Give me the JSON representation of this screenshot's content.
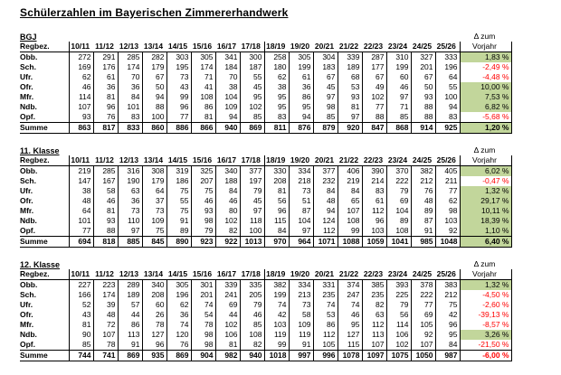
{
  "title": "Schülerzahlen im Bayerischen Zimmererhandwerk",
  "row_header": "Regbez.",
  "delta_header": {
    "line1": "Δ zum",
    "line2": "Vorjahr"
  },
  "years": [
    "10/11",
    "11/12",
    "12/13",
    "13/14",
    "14/15",
    "15/16",
    "16/17",
    "17/18",
    "18/19",
    "19/20",
    "20/21",
    "21/22",
    "22/23",
    "23/24",
    "24/25",
    "25/26"
  ],
  "colors": {
    "positive_bg": "#c2d69b",
    "negative_text": "#ff0000"
  },
  "sections": [
    {
      "id": "bgj",
      "label": "BGJ",
      "rows": [
        {
          "region": "Obb.",
          "values": [
            272,
            291,
            285,
            282,
            303,
            305,
            341,
            300,
            258,
            305,
            304,
            339,
            287,
            310,
            327,
            333
          ],
          "delta": "1,83 %",
          "trend": "pos"
        },
        {
          "region": "Sch.",
          "values": [
            169,
            176,
            174,
            179,
            195,
            174,
            184,
            187,
            180,
            199,
            183,
            189,
            177,
            199,
            201,
            196
          ],
          "delta": "-2,49 %",
          "trend": "neg"
        },
        {
          "region": "Ufr.",
          "values": [
            62,
            61,
            70,
            67,
            73,
            71,
            70,
            55,
            62,
            61,
            67,
            68,
            67,
            60,
            67,
            64
          ],
          "delta": "-4,48 %",
          "trend": "neg"
        },
        {
          "region": "Ofr.",
          "values": [
            46,
            36,
            36,
            50,
            43,
            41,
            38,
            45,
            38,
            36,
            45,
            53,
            49,
            46,
            50,
            55
          ],
          "delta": "10,00 %",
          "trend": "pos"
        },
        {
          "region": "Mfr.",
          "values": [
            114,
            81,
            84,
            94,
            99,
            108,
            104,
            95,
            95,
            86,
            97,
            93,
            102,
            97,
            93,
            100
          ],
          "delta": "7,53 %",
          "trend": "pos"
        },
        {
          "region": "Ndb.",
          "values": [
            107,
            96,
            101,
            88,
            96,
            86,
            109,
            102,
            95,
            95,
            98,
            81,
            77,
            71,
            88,
            94
          ],
          "delta": "6,82 %",
          "trend": "pos"
        },
        {
          "region": "Opf.",
          "values": [
            93,
            76,
            83,
            100,
            77,
            81,
            94,
            85,
            83,
            94,
            85,
            97,
            88,
            85,
            88,
            83
          ],
          "delta": "-5,68 %",
          "trend": "neg"
        }
      ],
      "summe": {
        "region": "Summe",
        "values": [
          863,
          817,
          833,
          860,
          886,
          866,
          940,
          869,
          811,
          876,
          879,
          920,
          847,
          868,
          914,
          925
        ],
        "delta": "1,20 %",
        "trend": "pos"
      }
    },
    {
      "id": "klasse-11",
      "label": "11. Klasse",
      "rows": [
        {
          "region": "Obb.",
          "values": [
            219,
            285,
            316,
            308,
            319,
            325,
            340,
            377,
            330,
            334,
            377,
            406,
            390,
            370,
            382,
            405
          ],
          "delta": "6,02 %",
          "trend": "pos"
        },
        {
          "region": "Sch.",
          "values": [
            147,
            167,
            190,
            179,
            186,
            207,
            188,
            197,
            208,
            218,
            232,
            219,
            214,
            222,
            212,
            211
          ],
          "delta": "-0,47 %",
          "trend": "neg"
        },
        {
          "region": "Ufr.",
          "values": [
            38,
            58,
            63,
            64,
            75,
            75,
            84,
            79,
            81,
            73,
            84,
            84,
            83,
            79,
            76,
            77
          ],
          "delta": "1,32 %",
          "trend": "pos"
        },
        {
          "region": "Ofr.",
          "values": [
            48,
            46,
            36,
            37,
            55,
            46,
            46,
            45,
            56,
            51,
            48,
            65,
            61,
            69,
            48,
            62
          ],
          "delta": "29,17 %",
          "trend": "pos"
        },
        {
          "region": "Mfr.",
          "values": [
            64,
            81,
            73,
            73,
            75,
            93,
            80,
            97,
            96,
            87,
            94,
            107,
            112,
            104,
            89,
            98
          ],
          "delta": "10,11 %",
          "trend": "pos"
        },
        {
          "region": "Ndb.",
          "values": [
            101,
            93,
            110,
            109,
            91,
            98,
            102,
            118,
            115,
            104,
            124,
            108,
            96,
            89,
            87,
            103
          ],
          "delta": "18,39 %",
          "trend": "pos"
        },
        {
          "region": "Opf.",
          "values": [
            77,
            88,
            97,
            75,
            89,
            79,
            82,
            100,
            84,
            97,
            112,
            99,
            103,
            108,
            91,
            92
          ],
          "delta": "1,10 %",
          "trend": "pos"
        }
      ],
      "summe": {
        "region": "Summe",
        "values": [
          694,
          818,
          885,
          845,
          890,
          923,
          922,
          1013,
          970,
          964,
          1071,
          1088,
          1059,
          1041,
          985,
          1048
        ],
        "delta": "6,40 %",
        "trend": "pos"
      }
    },
    {
      "id": "klasse-12",
      "label": "12. Klasse",
      "rows": [
        {
          "region": "Obb.",
          "values": [
            227,
            223,
            289,
            340,
            305,
            301,
            339,
            335,
            382,
            334,
            331,
            374,
            385,
            393,
            378,
            383
          ],
          "delta": "1,32 %",
          "trend": "pos"
        },
        {
          "region": "Sch.",
          "values": [
            166,
            174,
            189,
            208,
            196,
            201,
            241,
            205,
            199,
            213,
            235,
            247,
            235,
            225,
            222,
            212
          ],
          "delta": "-4,50 %",
          "trend": "neg"
        },
        {
          "region": "Ufr.",
          "values": [
            52,
            39,
            57,
            60,
            62,
            74,
            69,
            79,
            74,
            73,
            74,
            74,
            82,
            79,
            77,
            75
          ],
          "delta": "-2,60 %",
          "trend": "neg"
        },
        {
          "region": "Ofr.",
          "values": [
            43,
            48,
            44,
            26,
            36,
            54,
            44,
            46,
            42,
            58,
            53,
            46,
            63,
            56,
            69,
            42
          ],
          "delta": "-39,13 %",
          "trend": "neg"
        },
        {
          "region": "Mfr.",
          "values": [
            81,
            72,
            86,
            78,
            74,
            78,
            102,
            85,
            103,
            109,
            86,
            95,
            112,
            114,
            105,
            96
          ],
          "delta": "-8,57 %",
          "trend": "neg"
        },
        {
          "region": "Ndb.",
          "values": [
            90,
            107,
            113,
            127,
            120,
            98,
            106,
            108,
            119,
            119,
            112,
            127,
            113,
            106,
            92,
            95
          ],
          "delta": "3,26 %",
          "trend": "pos"
        },
        {
          "region": "Opf.",
          "values": [
            85,
            78,
            91,
            96,
            76,
            98,
            81,
            82,
            99,
            91,
            105,
            115,
            107,
            102,
            107,
            84
          ],
          "delta": "-21,50 %",
          "trend": "neg"
        }
      ],
      "summe": {
        "region": "Summe",
        "values": [
          744,
          741,
          869,
          935,
          869,
          904,
          982,
          940,
          1018,
          997,
          996,
          1078,
          1097,
          1075,
          1050,
          987
        ],
        "delta": "-6,00 %",
        "trend": "neg"
      }
    }
  ]
}
